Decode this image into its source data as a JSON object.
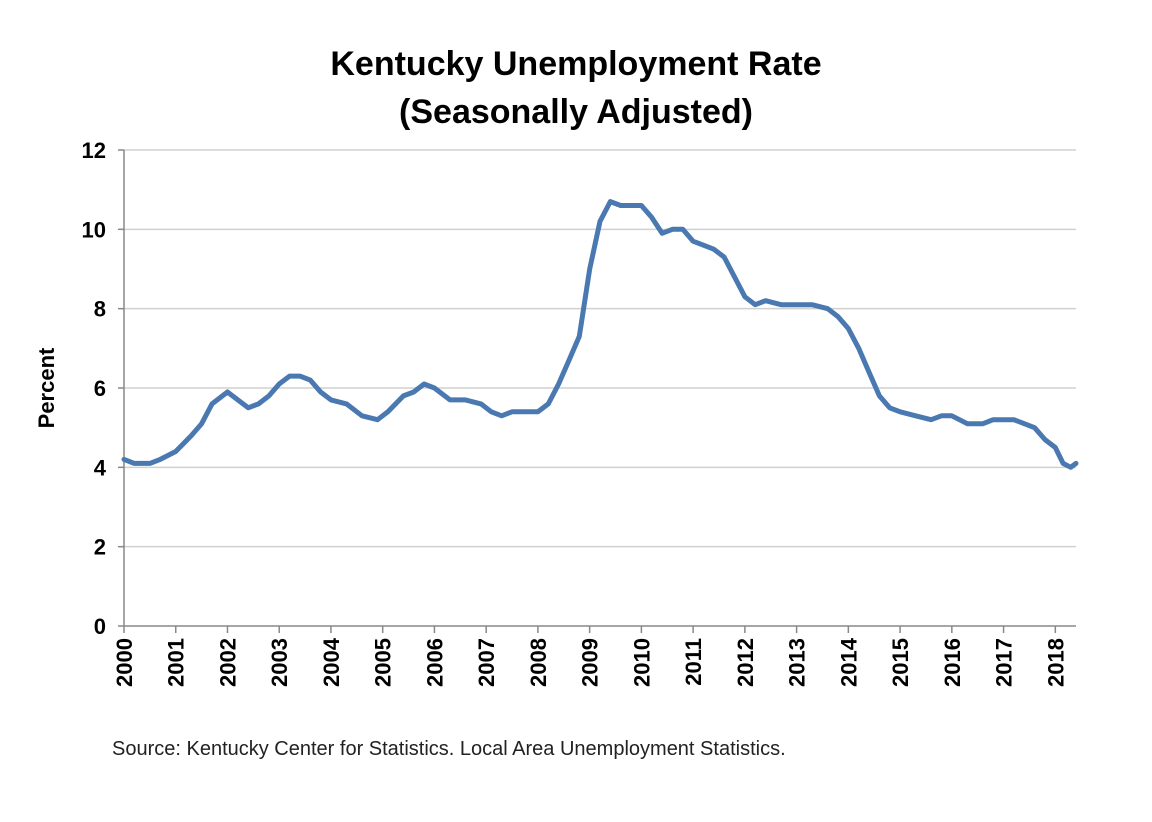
{
  "chart_data": {
    "type": "line",
    "title": "Kentucky Unemployment Rate",
    "subtitle": "(Seasonally Adjusted)",
    "xlabel": "",
    "ylabel": "Percent",
    "ylim": [
      0,
      12
    ],
    "y_ticks": [
      "0",
      "2",
      "4",
      "6",
      "8",
      "10",
      "12"
    ],
    "y_tick_values": [
      0,
      2,
      4,
      6,
      8,
      10,
      12
    ],
    "xlim": [
      2000,
      2018.4
    ],
    "x_ticks": [
      "2000",
      "2001",
      "2002",
      "2003",
      "2004",
      "2005",
      "2006",
      "2007",
      "2008",
      "2009",
      "2010",
      "2011",
      "2012",
      "2013",
      "2014",
      "2015",
      "2016",
      "2017",
      "2018"
    ],
    "grid": "horizontal",
    "line_color": "#4a78b0",
    "series": [
      {
        "name": "Kentucky Unemployment Rate",
        "x": [
          2000.0,
          2000.2,
          2000.5,
          2000.7,
          2001.0,
          2001.3,
          2001.5,
          2001.7,
          2002.0,
          2002.2,
          2002.4,
          2002.6,
          2002.8,
          2003.0,
          2003.2,
          2003.4,
          2003.6,
          2003.8,
          2004.0,
          2004.3,
          2004.6,
          2004.9,
          2005.1,
          2005.4,
          2005.6,
          2005.8,
          2006.0,
          2006.3,
          2006.6,
          2006.9,
          2007.1,
          2007.3,
          2007.5,
          2007.7,
          2008.0,
          2008.2,
          2008.4,
          2008.6,
          2008.8,
          2009.0,
          2009.2,
          2009.4,
          2009.6,
          2009.8,
          2010.0,
          2010.2,
          2010.4,
          2010.6,
          2010.8,
          2011.0,
          2011.2,
          2011.4,
          2011.6,
          2011.8,
          2012.0,
          2012.2,
          2012.4,
          2012.7,
          2013.0,
          2013.3,
          2013.6,
          2013.8,
          2014.0,
          2014.2,
          2014.4,
          2014.6,
          2014.8,
          2015.0,
          2015.3,
          2015.6,
          2015.8,
          2016.0,
          2016.3,
          2016.6,
          2016.8,
          2017.0,
          2017.2,
          2017.4,
          2017.6,
          2017.8,
          2018.0,
          2018.15,
          2018.3,
          2018.4
        ],
        "values": [
          4.2,
          4.1,
          4.1,
          4.2,
          4.4,
          4.8,
          5.1,
          5.6,
          5.9,
          5.7,
          5.5,
          5.6,
          5.8,
          6.1,
          6.3,
          6.3,
          6.2,
          5.9,
          5.7,
          5.6,
          5.3,
          5.2,
          5.4,
          5.8,
          5.9,
          6.1,
          6.0,
          5.7,
          5.7,
          5.6,
          5.4,
          5.3,
          5.4,
          5.4,
          5.4,
          5.6,
          6.1,
          6.7,
          7.3,
          9.0,
          10.2,
          10.7,
          10.6,
          10.6,
          10.6,
          10.3,
          9.9,
          10.0,
          10.0,
          9.7,
          9.6,
          9.5,
          9.3,
          8.8,
          8.3,
          8.1,
          8.2,
          8.1,
          8.1,
          8.1,
          8.0,
          7.8,
          7.5,
          7.0,
          6.4,
          5.8,
          5.5,
          5.4,
          5.3,
          5.2,
          5.3,
          5.3,
          5.1,
          5.1,
          5.2,
          5.2,
          5.2,
          5.1,
          5.0,
          4.7,
          4.5,
          4.1,
          4.0,
          4.1
        ]
      }
    ]
  },
  "source": "Source: Kentucky Center for Statistics. Local Area Unemployment Statistics."
}
